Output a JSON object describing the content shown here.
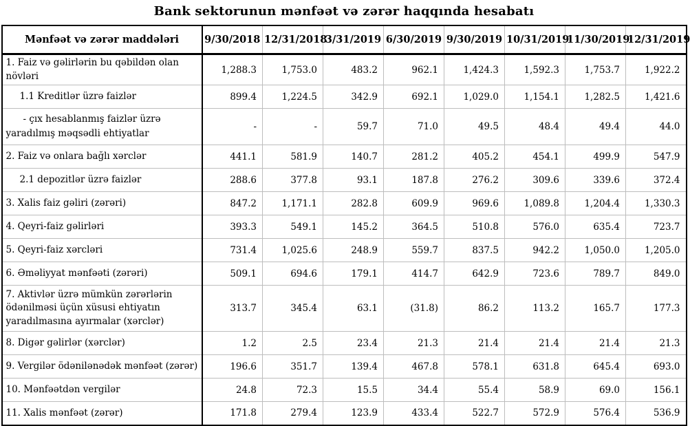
{
  "title": "Bank sektorunun mənfəət və zərər haqqında hesabatı",
  "table": {
    "header": {
      "label_col": "Mənfəət və zərər maddələri",
      "periods": [
        "9/30/2018",
        "12/31/2018",
        "3/31/2019",
        "6/30/2019",
        "9/30/2019",
        "10/31/2019",
        "11/30/2019",
        "12/31/2019"
      ]
    },
    "rows": [
      {
        "label": "1. Faiz və gəlirlərin bu qəbildən olan növləri",
        "values": [
          "1,288.3",
          "1,753.0",
          "483.2",
          "962.1",
          "1,424.3",
          "1,592.3",
          "1,753.7",
          "1,922.2"
        ]
      },
      {
        "label": "1.1 Kreditlər üzrə faizlər",
        "values": [
          "899.4",
          "1,224.5",
          "342.9",
          "692.1",
          "1,029.0",
          "1,154.1",
          "1,282.5",
          "1,421.6"
        ]
      },
      {
        "label": "- çıx hesablanmış faizlər üzrə yaradılmış məqsədli ehtiyatlar",
        "values": [
          "-",
          "-",
          "59.7",
          "71.0",
          "49.5",
          "48.4",
          "49.4",
          "44.0"
        ]
      },
      {
        "label": "2. Faiz və onlara bağlı xərclər",
        "values": [
          "441.1",
          "581.9",
          "140.7",
          "281.2",
          "405.2",
          "454.1",
          "499.9",
          "547.9"
        ]
      },
      {
        "label": "2.1 depozitlər üzrə faizlər",
        "values": [
          "288.6",
          "377.8",
          "93.1",
          "187.8",
          "276.2",
          "309.6",
          "339.6",
          "372.4"
        ]
      },
      {
        "label": "3. Xalis faiz gəliri (zərəri)",
        "values": [
          "847.2",
          "1,171.1",
          "282.8",
          "609.9",
          "969.6",
          "1,089.8",
          "1,204.4",
          "1,330.3"
        ]
      },
      {
        "label": "4. Qeyri-faiz gəlirləri",
        "values": [
          "393.3",
          "549.1",
          "145.2",
          "364.5",
          "510.8",
          "576.0",
          "635.4",
          "723.7"
        ]
      },
      {
        "label": "5. Qeyri-faiz xərcləri",
        "values": [
          "731.4",
          "1,025.6",
          "248.9",
          "559.7",
          "837.5",
          "942.2",
          "1,050.0",
          "1,205.0"
        ]
      },
      {
        "label": "6. Əməliyyat mənfəəti (zərəri)",
        "values": [
          "509.1",
          "694.6",
          "179.1",
          "414.7",
          "642.9",
          "723.6",
          "789.7",
          "849.0"
        ]
      },
      {
        "label": "7. Aktivlər üzrə mümkün zərərlərin ödənilməsi üçün xüsusi ehtiyatın yaradılmasına ayırmalar (xərclər)",
        "values": [
          "313.7",
          "345.4",
          "63.1",
          "(31.8)",
          "86.2",
          "113.2",
          "165.7",
          "177.3"
        ]
      },
      {
        "label": "8. Digər gəlirlər (xərclər)",
        "values": [
          "1.2",
          "2.5",
          "23.4",
          "21.3",
          "21.4",
          "21.4",
          "21.4",
          "21.3"
        ]
      },
      {
        "label": "9. Vergilər ödənilənədək mənfəət (zərər)",
        "values": [
          "196.6",
          "351.7",
          "139.4",
          "467.8",
          "578.1",
          "631.8",
          "645.4",
          "693.0"
        ]
      },
      {
        "label": "10. Mənfəətdən vergilər",
        "values": [
          "24.8",
          "72.3",
          "15.5",
          "34.4",
          "55.4",
          "58.9",
          "69.0",
          "156.1"
        ]
      },
      {
        "label": "11. Xalis mənfəət (zərər)",
        "values": [
          "171.8",
          "279.4",
          "123.9",
          "433.4",
          "522.7",
          "572.9",
          "576.4",
          "536.9"
        ]
      }
    ]
  },
  "chart_data": {
    "type": "table",
    "title": "Bank sektorunun mənfəət və zərər haqqında hesabatı",
    "columns": [
      "9/30/2018",
      "12/31/2018",
      "3/31/2019",
      "6/30/2019",
      "9/30/2019",
      "10/31/2019",
      "11/30/2019",
      "12/31/2019"
    ],
    "rows": [
      {
        "label": "1. Faiz və gəlirlərin bu qəbildən olan növləri",
        "values": [
          1288.3,
          1753.0,
          483.2,
          962.1,
          1424.3,
          1592.3,
          1753.7,
          1922.2
        ]
      },
      {
        "label": "1.1 Kreditlər üzrə faizlər",
        "values": [
          899.4,
          1224.5,
          342.9,
          692.1,
          1029.0,
          1154.1,
          1282.5,
          1421.6
        ]
      },
      {
        "label": "- çıx hesablanmış faizlər üzrə yaradılmış məqsədli ehtiyatlar",
        "values": [
          null,
          null,
          59.7,
          71.0,
          49.5,
          48.4,
          49.4,
          44.0
        ]
      },
      {
        "label": "2. Faiz və onlara bağlı xərclər",
        "values": [
          441.1,
          581.9,
          140.7,
          281.2,
          405.2,
          454.1,
          499.9,
          547.9
        ]
      },
      {
        "label": "2.1 depozitlər üzrə faizlər",
        "values": [
          288.6,
          377.8,
          93.1,
          187.8,
          276.2,
          309.6,
          339.6,
          372.4
        ]
      },
      {
        "label": "3. Xalis faiz gəliri (zərəri)",
        "values": [
          847.2,
          1171.1,
          282.8,
          609.9,
          969.6,
          1089.8,
          1204.4,
          1330.3
        ]
      },
      {
        "label": "4. Qeyri-faiz gəlirləri",
        "values": [
          393.3,
          549.1,
          145.2,
          364.5,
          510.8,
          576.0,
          635.4,
          723.7
        ]
      },
      {
        "label": "5. Qeyri-faiz xərcləri",
        "values": [
          731.4,
          1025.6,
          248.9,
          559.7,
          837.5,
          942.2,
          1050.0,
          1205.0
        ]
      },
      {
        "label": "6. Əməliyyat mənfəəti (zərəri)",
        "values": [
          509.1,
          694.6,
          179.1,
          414.7,
          642.9,
          723.6,
          789.7,
          849.0
        ]
      },
      {
        "label": "7. Aktivlər üzrə mümkün zərərlərin ödənilməsi üçün xüsusi ehtiyatın yaradılmasına ayırmalar (xərclər)",
        "values": [
          313.7,
          345.4,
          63.1,
          -31.8,
          86.2,
          113.2,
          165.7,
          177.3
        ]
      },
      {
        "label": "8. Digər gəlirlər (xərclər)",
        "values": [
          1.2,
          2.5,
          23.4,
          21.3,
          21.4,
          21.4,
          21.4,
          21.3
        ]
      },
      {
        "label": "9. Vergilər ödənilənədək mənfəət (zərər)",
        "values": [
          196.6,
          351.7,
          139.4,
          467.8,
          578.1,
          631.8,
          645.4,
          693.0
        ]
      },
      {
        "label": "10. Mənfəətdən vergilər",
        "values": [
          24.8,
          72.3,
          15.5,
          34.4,
          55.4,
          58.9,
          69.0,
          156.1
        ]
      },
      {
        "label": "11. Xalis mənfəət (zərər)",
        "values": [
          171.8,
          279.4,
          123.9,
          433.4,
          522.7,
          572.9,
          576.4,
          536.9
        ]
      }
    ]
  }
}
